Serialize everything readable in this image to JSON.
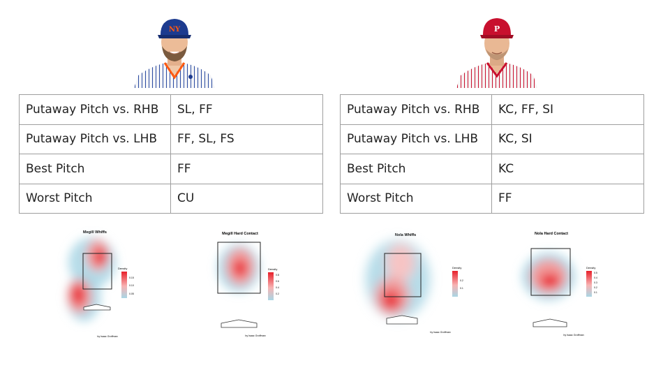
{
  "pitchers": [
    {
      "cap_color": "#1d3b8f",
      "jersey": "pinstripe-white-blue",
      "stats": [
        {
          "label": "Putaway Pitch vs. RHB",
          "value": "SL, FF"
        },
        {
          "label": "Putaway Pitch vs. LHB",
          "value": "FF, SL, FS"
        },
        {
          "label": "Best Pitch",
          "value": "FF"
        },
        {
          "label": "Worst Pitch",
          "value": "CU"
        }
      ],
      "heatmaps": [
        {
          "title": "Megill Whiffs",
          "legend_title": "Density",
          "legend_ticks": [
            "0.15",
            "0.10",
            "0.05"
          ],
          "credit": "by Isaac Groffman"
        },
        {
          "title": "Megill Hard Contact",
          "legend_title": "Density",
          "legend_ticks": [
            "0.8",
            "0.6",
            "0.4",
            "0.2"
          ],
          "credit": "by Isaac Groffman"
        }
      ]
    },
    {
      "cap_color": "#c8102e",
      "jersey": "pinstripe-white-red",
      "stats": [
        {
          "label": "Putaway Pitch vs. RHB",
          "value": "KC, FF, SI"
        },
        {
          "label": "Putaway Pitch vs. LHB",
          "value": "KC, SI"
        },
        {
          "label": "Best Pitch",
          "value": "KC"
        },
        {
          "label": "Worst Pitch",
          "value": "FF"
        }
      ],
      "heatmaps": [
        {
          "title": "Nola Whiffs",
          "legend_title": "Density",
          "legend_ticks": [
            "0.2",
            "0.1"
          ],
          "credit": "by Isaac Groffman"
        },
        {
          "title": "Nola Hard Contact",
          "legend_title": "Density",
          "legend_ticks": [
            "0.5",
            "0.4",
            "0.3",
            "0.2",
            "0.1"
          ],
          "credit": "by Isaac Groffman"
        }
      ]
    }
  ],
  "colors": {
    "border": "#9e9e9e",
    "heat_high": "#e8202a",
    "heat_low": "#a9d6e5"
  }
}
